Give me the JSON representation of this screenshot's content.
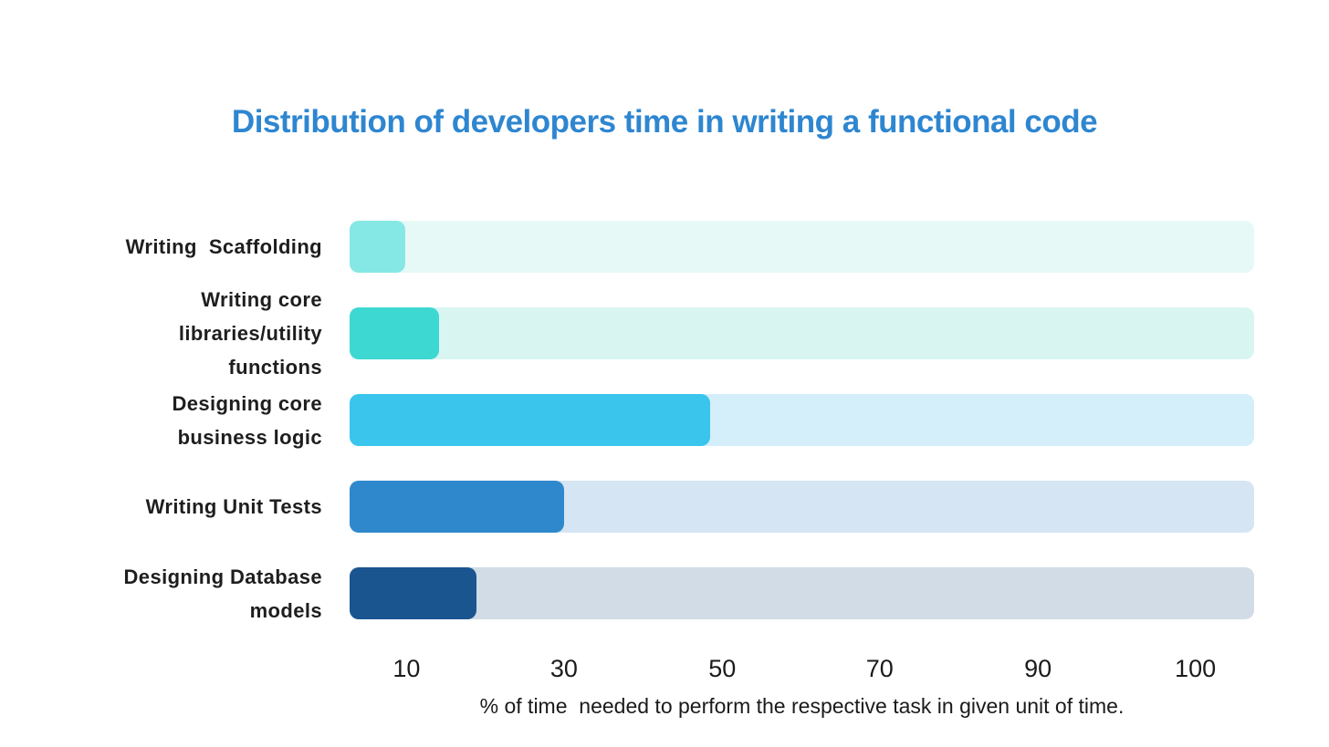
{
  "title": {
    "text": "Distribution of developers time in writing a functional code"
  },
  "title_color": "#2e86d0",
  "chart": {
    "bars": [
      {
        "label": "Writing  Scaffolding",
        "value": 10,
        "width_pct": 6.2,
        "fill_color": "#85e8e4",
        "track_color": "#e7f9f7"
      },
      {
        "label": "Writing core\nlibraries/utility\nfunctions",
        "value": 14,
        "width_pct": 9.9,
        "fill_color": "#3ed8d2",
        "track_color": "#d9f5f2"
      },
      {
        "label": "Designing core\nbusiness logic",
        "value": 48,
        "width_pct": 39.9,
        "fill_color": "#39c5ec",
        "track_color": "#d4eefa"
      },
      {
        "label": "Writing Unit Tests",
        "value": 30,
        "width_pct": 23.7,
        "fill_color": "#2f88cb",
        "track_color": "#d5e5f3"
      },
      {
        "label": "Designing Database\nmodels",
        "value": 19,
        "width_pct": 14.0,
        "fill_color": "#1a5590",
        "track_color": "#d1dce6"
      }
    ]
  },
  "x_axis": {
    "ticks": [
      "10",
      "30",
      "50",
      "70",
      "90",
      "100"
    ],
    "tick_positions_pct": [
      6.3,
      23.7,
      41.2,
      58.6,
      76.1,
      93.5
    ],
    "caption": "% of time  needed to perform the respective task in given unit of time."
  },
  "chart_data": {
    "type": "bar",
    "orientation": "horizontal",
    "title": "Distribution of developers time in writing a functional code",
    "categories": [
      "Writing Scaffolding",
      "Writing core libraries/utility functions",
      "Designing core business logic",
      "Writing Unit Tests",
      "Designing Database models"
    ],
    "values": [
      10,
      14,
      48,
      30,
      19
    ],
    "xlabel": "% of time needed to perform the respective task in given unit of time.",
    "ylabel": "",
    "x_tick_labels": [
      "10",
      "30",
      "50",
      "70",
      "90",
      "100"
    ],
    "xlim": [
      0,
      115
    ],
    "grid": false,
    "legend": false,
    "bar_colors": [
      "#85e8e4",
      "#3ed8d2",
      "#39c5ec",
      "#2f88cb",
      "#1a5590"
    ],
    "bar_track_colors": [
      "#e7f9f7",
      "#d9f5f2",
      "#d4eefa",
      "#d5e5f3",
      "#d1dce6"
    ]
  }
}
